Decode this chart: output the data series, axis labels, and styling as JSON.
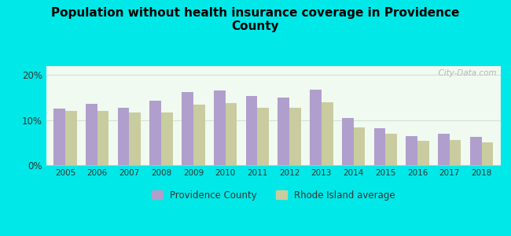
{
  "title": "Population without health insurance coverage in Providence\nCounty",
  "years": [
    2005,
    2006,
    2007,
    2008,
    2009,
    2010,
    2011,
    2012,
    2013,
    2014,
    2015,
    2016,
    2017,
    2018
  ],
  "providence_values": [
    12.5,
    13.7,
    12.8,
    14.3,
    16.2,
    16.6,
    15.4,
    15.0,
    16.7,
    10.5,
    8.2,
    6.5,
    6.9,
    6.3
  ],
  "ri_values": [
    12.0,
    12.1,
    11.7,
    11.7,
    13.5,
    13.8,
    12.7,
    12.7,
    14.0,
    8.3,
    6.9,
    5.4,
    5.6,
    5.0
  ],
  "providence_color": "#b09fcc",
  "ri_color": "#c8cc9f",
  "background_outer": "#00e8e8",
  "ylim": [
    0,
    22
  ],
  "yticks": [
    0,
    10,
    20
  ],
  "ytick_labels": [
    "0%",
    "10%",
    "20%"
  ],
  "legend_providence": "Providence County",
  "legend_ri": "Rhode Island average",
  "watermark": "  City-Data.com"
}
